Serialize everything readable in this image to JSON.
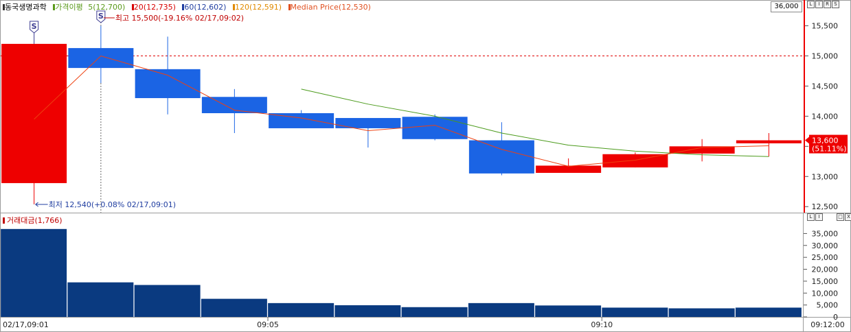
{
  "header": {
    "stock_name": "동국생명과학",
    "ma_label": "가격이평",
    "ma_items": [
      {
        "label": "5(12,700)",
        "color": "#5a9a1a"
      },
      {
        "label": "20(12,735)",
        "color": "#d80000"
      },
      {
        "label": "60(12,602)",
        "color": "#1f3da0"
      },
      {
        "label": "120(12,591)",
        "color": "#e08a00"
      },
      {
        "label": "Median Price(12,530)",
        "color": "#e05020"
      }
    ],
    "top_value": "36,000",
    "price_buttons": [
      "L",
      "I",
      "R",
      "S"
    ],
    "volume_buttons_left": [
      "L",
      "I"
    ],
    "volume_buttons_right": [
      "□",
      "X"
    ]
  },
  "annotations": {
    "high": "최고 15,500(-19.16% 02/17,09:02)",
    "low": "최저 12,540(+0.08% 02/17,09:01)",
    "marker": "S"
  },
  "current": {
    "price": "13,600",
    "pct": "(51.11%)"
  },
  "volume_legend": "거래대금(1,766)",
  "colors": {
    "up": "#ee0000",
    "down": "#1b64e4",
    "volume": "#0a3a80",
    "ma5": "#4a9a1a",
    "ma20": "#ee4010",
    "ref_line": "#e00000"
  },
  "chart_data": [
    {
      "type": "candlestick",
      "x": [
        "02/17,09:01",
        "09:02",
        "09:03",
        "09:04",
        "09:05",
        "09:06",
        "09:07",
        "09:08",
        "09:09",
        "09:10",
        "09:11",
        "09:12"
      ],
      "open": [
        12890,
        15130,
        14780,
        14320,
        14050,
        13970,
        13990,
        13600,
        13060,
        13150,
        13380,
        13550
      ],
      "close": [
        15200,
        14800,
        14300,
        14050,
        13800,
        13800,
        13620,
        13050,
        13180,
        13370,
        13500,
        13600
      ],
      "high": [
        15200,
        15500,
        15320,
        14450,
        14100,
        13970,
        14030,
        13900,
        13300,
        13400,
        13620,
        13720
      ],
      "low": [
        12540,
        14550,
        14030,
        13720,
        13820,
        13480,
        13600,
        13020,
        13060,
        13150,
        13250,
        13330
      ],
      "series": [
        {
          "name": "5",
          "values": [
            null,
            null,
            null,
            null,
            14450,
            14200,
            14000,
            13720,
            13520,
            13420,
            13360,
            13330
          ]
        },
        {
          "name": "20",
          "values": [
            13950,
            15000,
            14680,
            14100,
            13970,
            13760,
            13850,
            13450,
            13170,
            13270,
            13480,
            13510
          ]
        }
      ],
      "reference_line": 15000,
      "ylim": [
        12400,
        15700
      ],
      "yticks": [
        "12,500",
        "13,000",
        "13,500",
        "14,000",
        "14,500",
        "15,000",
        "15,500"
      ],
      "xticks": [
        "02/17,09:01",
        "09:05",
        "09:10",
        "09:12:00"
      ]
    },
    {
      "type": "bar",
      "title": "거래대금(1,766)",
      "values": [
        36900,
        14500,
        13400,
        7600,
        5800,
        4900,
        4100,
        5800,
        4800,
        3900,
        3600,
        3900
      ],
      "ylim": [
        0,
        38000
      ],
      "yticks": [
        "0",
        "5,000",
        "10,000",
        "15,000",
        "20,000",
        "25,000",
        "30,000",
        "35,000"
      ]
    }
  ]
}
